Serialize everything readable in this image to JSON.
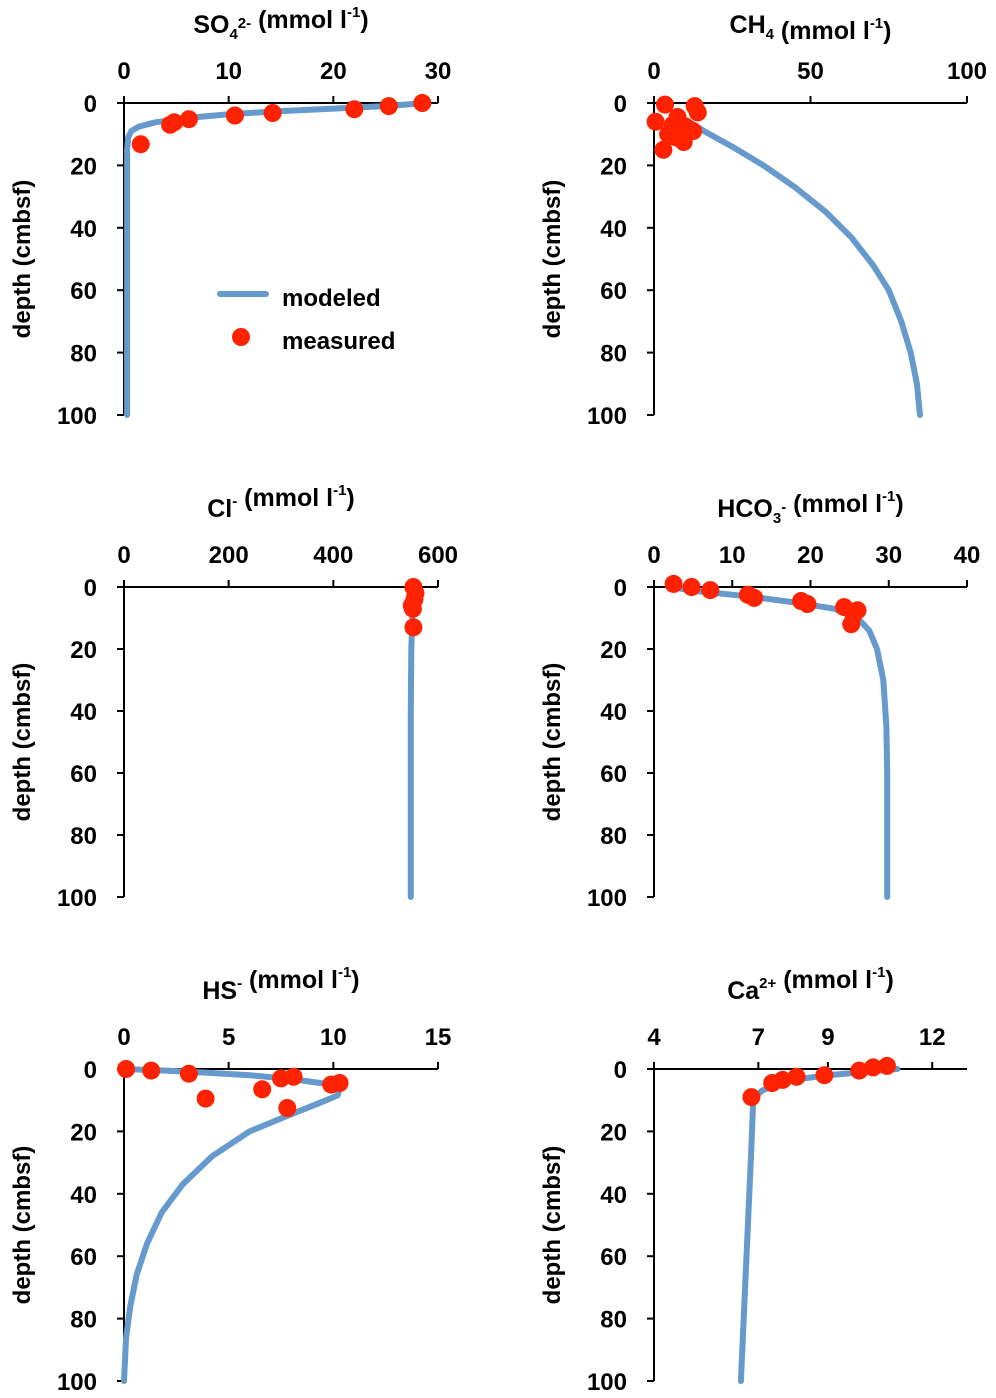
{
  "colors": {
    "modeled": "#6699CC",
    "measured": "#FF2200",
    "axis": "#000000",
    "background": "#FFFFFF"
  },
  "legend": {
    "modeled_label": "modeled",
    "measured_label": "measured",
    "placement": "inside first panel, middle-right"
  },
  "chart_data": [
    {
      "type": "scatter",
      "title": {
        "base": "SO",
        "sub": "4",
        "sup": "2-",
        "rest": " (mmol l",
        "unit_sup": "-1",
        "end": ")"
      },
      "xlabel": "",
      "ylabel": "depth (cmbsf)",
      "xlim": [
        0,
        30
      ],
      "ylim": [
        0,
        100
      ],
      "x_ticks": [
        "0",
        "10",
        "20",
        "30"
      ],
      "y_ticks": [
        "0",
        "20",
        "40",
        "60",
        "80",
        "100"
      ],
      "x_axis_position": "top",
      "y_inverted": true,
      "grid": false,
      "series": [
        {
          "name": "modeled",
          "kind": "line",
          "points": [
            [
              28.8,
              0
            ],
            [
              25,
              1
            ],
            [
              20,
              1.8
            ],
            [
              15,
              2.6
            ],
            [
              10,
              3.6
            ],
            [
              6,
              4.8
            ],
            [
              3,
              6.2
            ],
            [
              1.4,
              7.6
            ],
            [
              0.7,
              9
            ],
            [
              0.4,
              11
            ],
            [
              0.3,
              15
            ],
            [
              0.3,
              30
            ],
            [
              0.3,
              60
            ],
            [
              0.3,
              100
            ]
          ]
        },
        {
          "name": "measured",
          "kind": "scatter",
          "points": [
            [
              28.5,
              0
            ],
            [
              25.3,
              1
            ],
            [
              22,
              2
            ],
            [
              14.2,
              3.2
            ],
            [
              10.6,
              4
            ],
            [
              6.2,
              5.2
            ],
            [
              4.8,
              6.2
            ],
            [
              4.4,
              7
            ],
            [
              1.6,
              13.2
            ]
          ]
        }
      ]
    },
    {
      "type": "scatter",
      "title": {
        "base": "CH",
        "sub": "4",
        "sup": "",
        "rest": " (mmol l",
        "unit_sup": "-1",
        "end": ")"
      },
      "xlabel": "",
      "ylabel": "depth (cmbsf)",
      "xlim": [
        0,
        100
      ],
      "ylim": [
        0,
        100
      ],
      "x_ticks": [
        "0",
        "50",
        "100"
      ],
      "y_ticks": [
        "0",
        "20",
        "40",
        "60",
        "80",
        "100"
      ],
      "x_axis_position": "top",
      "y_inverted": true,
      "grid": false,
      "series": [
        {
          "name": "modeled",
          "kind": "line",
          "points": [
            [
              12,
              6.5
            ],
            [
              16,
              9
            ],
            [
              25,
              14
            ],
            [
              35,
              20
            ],
            [
              45,
              27
            ],
            [
              55,
              35
            ],
            [
              63,
              43
            ],
            [
              70,
              52
            ],
            [
              75,
              60
            ],
            [
              79,
              70
            ],
            [
              82,
              80
            ],
            [
              84,
              90
            ],
            [
              85,
              100
            ]
          ]
        },
        {
          "name": "measured",
          "kind": "scatter",
          "points": [
            [
              3.5,
              0.5
            ],
            [
              13,
              1
            ],
            [
              14,
              3
            ],
            [
              7.5,
              4.5
            ],
            [
              0.5,
              6
            ],
            [
              6,
              7
            ],
            [
              10,
              7.5
            ],
            [
              12.5,
              9
            ],
            [
              4.5,
              10
            ],
            [
              7,
              11
            ],
            [
              9.5,
              12.5
            ],
            [
              3,
              15
            ]
          ]
        }
      ]
    },
    {
      "type": "scatter",
      "title": {
        "base": "Cl",
        "sub": "",
        "sup": "-",
        "rest": " (mmol l",
        "unit_sup": "-1",
        "end": ")"
      },
      "xlabel": "",
      "ylabel": "depth (cmbsf)",
      "xlim": [
        0,
        600
      ],
      "ylim": [
        0,
        100
      ],
      "x_ticks": [
        "0",
        "200",
        "400",
        "600"
      ],
      "y_ticks": [
        "0",
        "20",
        "40",
        "60",
        "80",
        "100"
      ],
      "x_axis_position": "top",
      "y_inverted": true,
      "grid": false,
      "series": [
        {
          "name": "modeled",
          "kind": "line",
          "points": [
            [
              553,
              1
            ],
            [
              552,
              5
            ],
            [
              551,
              10
            ],
            [
              549,
              20
            ],
            [
              548,
              40
            ],
            [
              548,
              60
            ],
            [
              548,
              80
            ],
            [
              548,
              100
            ]
          ]
        },
        {
          "name": "measured",
          "kind": "scatter",
          "points": [
            [
              553,
              0
            ],
            [
              557,
              2
            ],
            [
              555,
              4
            ],
            [
              550,
              6
            ],
            [
              552,
              7
            ],
            [
              553,
              13
            ]
          ]
        }
      ]
    },
    {
      "type": "scatter",
      "title": {
        "base": "HCO",
        "sub": "3",
        "sup": "-",
        "rest": " (mmol l",
        "unit_sup": "-1",
        "end": ")"
      },
      "xlabel": "",
      "ylabel": "depth (cmbsf)",
      "xlim": [
        0,
        40
      ],
      "ylim": [
        0,
        100
      ],
      "x_ticks": [
        "0",
        "10",
        "20",
        "30",
        "40"
      ],
      "y_ticks": [
        "0",
        "20",
        "40",
        "60",
        "80",
        "100"
      ],
      "x_axis_position": "top",
      "y_inverted": true,
      "grid": false,
      "series": [
        {
          "name": "modeled",
          "kind": "line",
          "points": [
            [
              2,
              0
            ],
            [
              6,
              1.5
            ],
            [
              12,
              3
            ],
            [
              18,
              5
            ],
            [
              23,
              7
            ],
            [
              26,
              10
            ],
            [
              27.5,
              14
            ],
            [
              28.5,
              20
            ],
            [
              29.3,
              30
            ],
            [
              29.7,
              45
            ],
            [
              29.8,
              60
            ],
            [
              29.8,
              80
            ],
            [
              29.8,
              100
            ]
          ]
        },
        {
          "name": "measured",
          "kind": "scatter",
          "points": [
            [
              2.5,
              -1
            ],
            [
              4.8,
              0
            ],
            [
              7.2,
              1
            ],
            [
              12,
              2.5
            ],
            [
              12.8,
              3.5
            ],
            [
              18.8,
              4.5
            ],
            [
              19.6,
              5.5
            ],
            [
              24.3,
              6.5
            ],
            [
              26,
              7.5
            ],
            [
              25.5,
              9
            ],
            [
              25.2,
              12
            ]
          ]
        }
      ]
    },
    {
      "type": "scatter",
      "title": {
        "base": "HS",
        "sub": "",
        "sup": "-",
        "rest": " (mmol l",
        "unit_sup": "-1",
        "end": ")"
      },
      "xlabel": "",
      "ylabel": "depth (cmbsf)",
      "xlim": [
        0,
        15
      ],
      "ylim": [
        0,
        100
      ],
      "x_ticks": [
        "0",
        "5",
        "10",
        "15"
      ],
      "y_ticks": [
        "0",
        "20",
        "40",
        "60",
        "80",
        "100"
      ],
      "x_axis_position": "top",
      "y_inverted": true,
      "grid": false,
      "series": [
        {
          "name": "modeled",
          "kind": "line",
          "points": [
            [
              0,
              0
            ],
            [
              2,
              0.5
            ],
            [
              4,
              1.2
            ],
            [
              6,
              2
            ],
            [
              8,
              3.2
            ],
            [
              9.5,
              4.6
            ],
            [
              10.3,
              6.5
            ],
            [
              10.2,
              8.5
            ],
            [
              9.3,
              11
            ],
            [
              7.8,
              15
            ],
            [
              6,
              20
            ],
            [
              4.2,
              28
            ],
            [
              2.8,
              37
            ],
            [
              1.8,
              46
            ],
            [
              1.1,
              56
            ],
            [
              0.6,
              66
            ],
            [
              0.3,
              76
            ],
            [
              0.1,
              86
            ],
            [
              0,
              100
            ]
          ]
        },
        {
          "name": "measured",
          "kind": "scatter",
          "points": [
            [
              0.1,
              0
            ],
            [
              1.3,
              0.5
            ],
            [
              3.1,
              1.5
            ],
            [
              3.9,
              9.5
            ],
            [
              6.6,
              6.5
            ],
            [
              7.5,
              3
            ],
            [
              8.1,
              2.5
            ],
            [
              9.9,
              5
            ],
            [
              10.3,
              4.5
            ],
            [
              7.8,
              12.5
            ]
          ]
        }
      ]
    },
    {
      "type": "scatter",
      "title": {
        "base": "Ca",
        "sub": "",
        "sup": "2+",
        "rest": " (mmol l",
        "unit_sup": "-1",
        "end": ")"
      },
      "xlabel": "",
      "ylabel": "depth (cmbsf)",
      "xlim": [
        4,
        13
      ],
      "ylim": [
        0,
        100
      ],
      "x_ticks": [
        "4",
        "7",
        "9",
        "12"
      ],
      "y_ticks": [
        "0",
        "20",
        "40",
        "60",
        "80",
        "100"
      ],
      "x_axis_position": "top",
      "y_inverted": true,
      "grid": false,
      "series": [
        {
          "name": "modeled",
          "kind": "line",
          "points": [
            [
              11,
              0
            ],
            [
              10,
              1
            ],
            [
              9,
              2
            ],
            [
              8,
              3.5
            ],
            [
              7.5,
              5
            ],
            [
              7.1,
              7
            ],
            [
              6.9,
              9
            ],
            [
              6.85,
              11
            ],
            [
              6.8,
              25
            ],
            [
              6.7,
              50
            ],
            [
              6.6,
              75
            ],
            [
              6.5,
              100
            ]
          ]
        },
        {
          "name": "measured",
          "kind": "scatter",
          "points": [
            [
              10.7,
              -1
            ],
            [
              10.3,
              -0.5
            ],
            [
              9.9,
              0.5
            ],
            [
              8.9,
              2
            ],
            [
              8.1,
              2.5
            ],
            [
              7.7,
              3.5
            ],
            [
              7.4,
              4.5
            ],
            [
              6.8,
              9
            ]
          ]
        }
      ]
    }
  ]
}
